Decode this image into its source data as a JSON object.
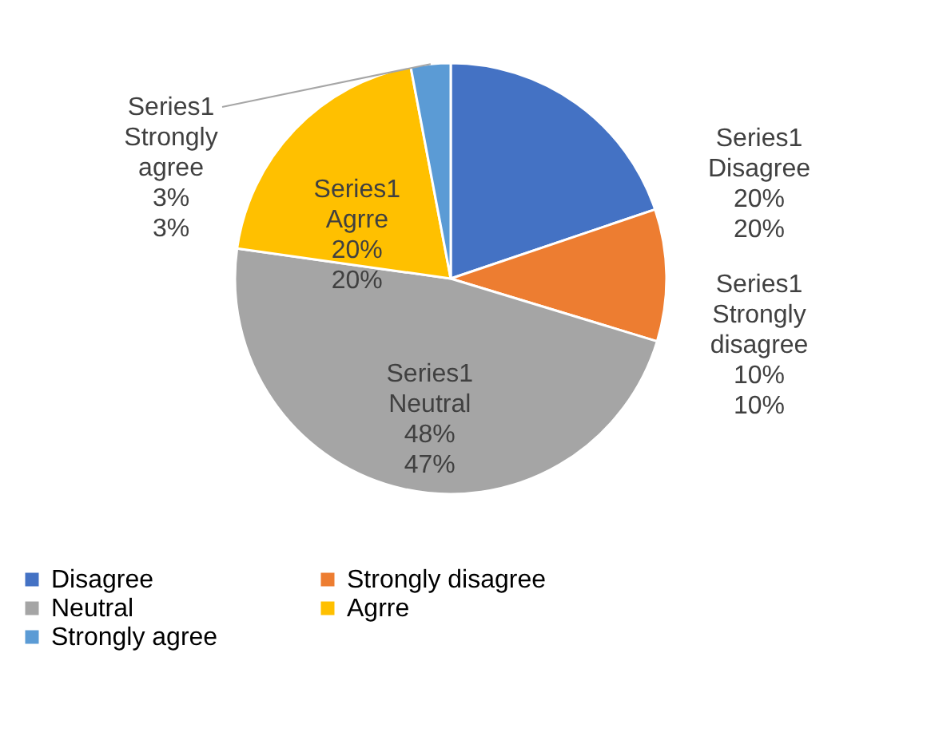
{
  "chart_data": {
    "type": "pie",
    "categories": [
      "Disagree",
      "Strongly disagree",
      "Neutral",
      "Agrre",
      "Strongly agree"
    ],
    "series": [
      {
        "name": "Series1",
        "values": [
          20,
          10,
          48,
          20,
          3
        ],
        "value_labels": [
          "20%\n20%",
          "10%\n10%",
          "48%\n47%",
          "20%\n20%",
          "3%\n3%"
        ]
      }
    ],
    "colors": [
      "#4472c4",
      "#ed7d31",
      "#a5a5a5",
      "#ffc000",
      "#5b9bd5"
    ],
    "legend": "bottom"
  }
}
